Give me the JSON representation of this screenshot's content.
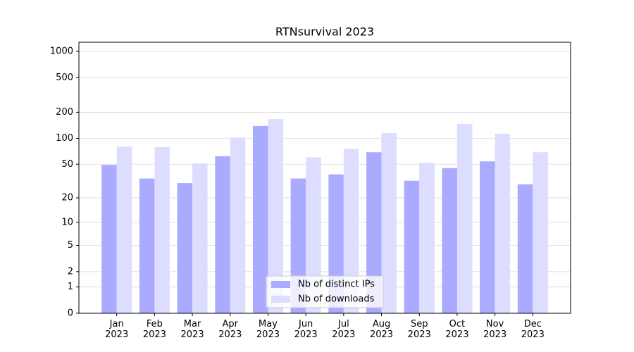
{
  "chart_data": {
    "type": "bar",
    "title": "RTNsurvival 2023",
    "categories": [
      "Jan 2023",
      "Feb 2023",
      "Mar 2023",
      "Apr 2023",
      "May 2023",
      "Jun 2023",
      "Jul 2023",
      "Aug 2023",
      "Sep 2023",
      "Oct 2023",
      "Nov 2023",
      "Dec 2023"
    ],
    "series": [
      {
        "name": "Nb of distinct IPs",
        "color": "#aaaaff",
        "values": [
          49,
          34,
          30,
          62,
          139,
          34,
          38,
          69,
          32,
          45,
          54,
          29
        ]
      },
      {
        "name": "Nb of downloads",
        "color": "#ddddff",
        "values": [
          80,
          79,
          51,
          102,
          167,
          60,
          75,
          115,
          52,
          147,
          113,
          69
        ]
      }
    ],
    "yscale": "log1p",
    "ylim": [
      0,
      1273
    ],
    "yticks": [
      0,
      1,
      2,
      5,
      10,
      20,
      50,
      100,
      200,
      500,
      1000
    ],
    "grid": true,
    "legend": "lower center"
  }
}
